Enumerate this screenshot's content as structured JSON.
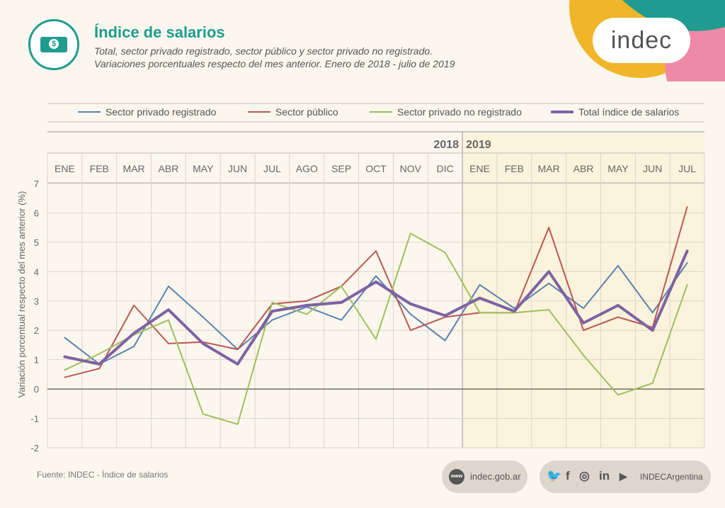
{
  "header": {
    "title": "Índice de salarios",
    "subtitle_line1": "Total, sector privado registrado, sector público y sector privado no registrado.",
    "subtitle_line2": "Variaciones porcentuales respecto del mes anterior. Enero de 2018 - julio de 2019",
    "brand": "indec",
    "icon": "money-bill-icon",
    "bill_symbol": "$"
  },
  "footer": {
    "source": "Fuente: INDEC - Índice de salarios",
    "www_badge": "www",
    "website": "indec.gob.ar",
    "social_handle": "INDECArgentina",
    "social_icons": [
      "twitter-icon",
      "facebook-icon",
      "instagram-icon",
      "linkedin-icon",
      "youtube-icon"
    ],
    "social_glyphs": {
      "twitter": "🐦",
      "facebook": "f",
      "instagram": "◎",
      "linkedin": "in",
      "youtube": "▶"
    }
  },
  "colors": {
    "accent": "#1f9c8f",
    "highlight_2019": "#fbf3dc"
  },
  "chart_data": {
    "type": "line",
    "ylabel": "Variación porcentual respecto del mes anterior (%)",
    "xlabel": "",
    "years": [
      {
        "label": "2018",
        "start": 0,
        "end": 11
      },
      {
        "label": "2019",
        "start": 12,
        "end": 18
      }
    ],
    "categories": [
      "ENE",
      "FEB",
      "MAR",
      "ABR",
      "MAY",
      "JUN",
      "JUL",
      "AGO",
      "SEP",
      "OCT",
      "NOV",
      "DIC",
      "ENE",
      "FEB",
      "MAR",
      "ABR",
      "MAY",
      "JUN",
      "JUL"
    ],
    "ylim": [
      -2,
      7
    ],
    "yticks": [
      -2,
      -1,
      0,
      1,
      2,
      3,
      4,
      5,
      6,
      7
    ],
    "grid": true,
    "legend_position": "top",
    "series": [
      {
        "name": "Sector privado registrado",
        "color": "#5a82b0",
        "values": [
          1.75,
          0.85,
          1.45,
          3.5,
          2.45,
          1.35,
          2.35,
          2.8,
          2.35,
          3.85,
          2.55,
          1.65,
          3.55,
          2.75,
          3.6,
          2.75,
          4.2,
          2.6,
          4.3
        ]
      },
      {
        "name": "Sector público",
        "color": "#bb5753",
        "values": [
          0.4,
          0.7,
          2.85,
          1.55,
          1.6,
          1.35,
          2.9,
          3.0,
          3.5,
          4.7,
          2.0,
          2.45,
          2.6,
          2.6,
          5.5,
          2.0,
          2.45,
          2.1,
          6.2
        ]
      },
      {
        "name": "Sector privado no registrado",
        "color": "#9ec05c",
        "values": [
          0.65,
          1.2,
          1.85,
          2.35,
          -0.85,
          -1.2,
          2.95,
          2.55,
          3.5,
          1.7,
          5.3,
          4.65,
          2.6,
          2.6,
          2.7,
          1.15,
          -0.2,
          0.2,
          3.55
        ]
      },
      {
        "name": "Total índice de salarios",
        "color": "#7d63a3",
        "values": [
          1.1,
          0.85,
          1.9,
          2.7,
          1.55,
          0.85,
          2.65,
          2.85,
          2.95,
          3.65,
          2.9,
          2.5,
          3.1,
          2.65,
          4.0,
          2.25,
          2.85,
          2.0,
          4.7
        ]
      }
    ]
  }
}
